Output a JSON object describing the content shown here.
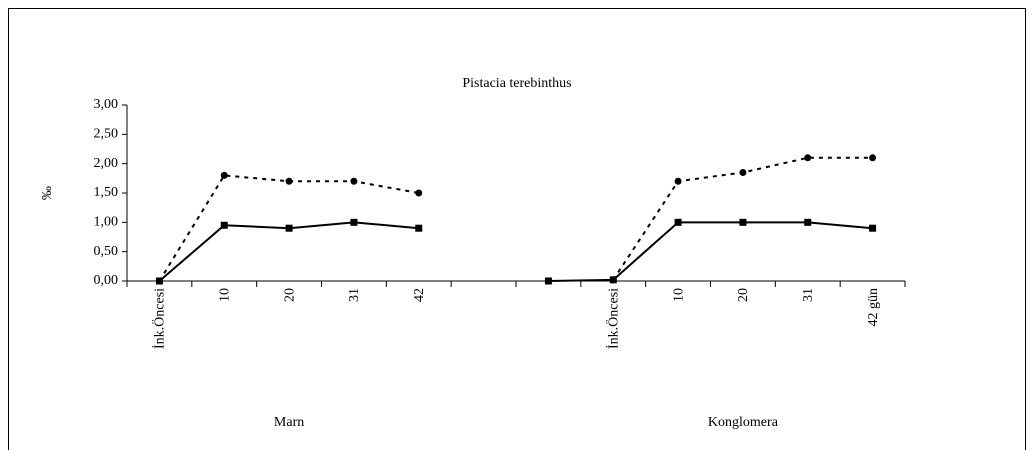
{
  "chart_data": {
    "type": "line",
    "title": "Pistacia terebinthus",
    "y_label": "‰",
    "categories": [
      "İnk.Öncesi",
      "10",
      "20",
      "31",
      "42",
      null,
      null,
      "İnk.Öncesi",
      "10",
      "20",
      "31",
      "42 gün"
    ],
    "groups": [
      "Marn",
      "Konglomera"
    ],
    "series": [
      {
        "color": "#000000",
        "marker": "square",
        "dash": false,
        "values": [
          0,
          0.95,
          0.9,
          1.0,
          0.9,
          null,
          0,
          0.02,
          1.0,
          1.0,
          1.0,
          0.9
        ]
      },
      {
        "color": "#000000",
        "marker": "circle",
        "dash": true,
        "values": [
          0,
          1.8,
          1.7,
          1.7,
          1.5,
          null,
          null,
          0.02,
          1.7,
          1.85,
          2.1,
          2.1
        ]
      }
    ],
    "ylim": [
      0,
      3
    ],
    "yticks": [
      {
        "value": 0,
        "label": "0,00"
      },
      {
        "value": 0.5,
        "label": "0,50"
      },
      {
        "value": 1,
        "label": "1,00"
      },
      {
        "value": 1.5,
        "label": "1,50"
      },
      {
        "value": 2,
        "label": "2,00"
      },
      {
        "value": 2.5,
        "label": "2,50"
      },
      {
        "value": 3,
        "label": "3,00"
      }
    ],
    "grid": false
  }
}
